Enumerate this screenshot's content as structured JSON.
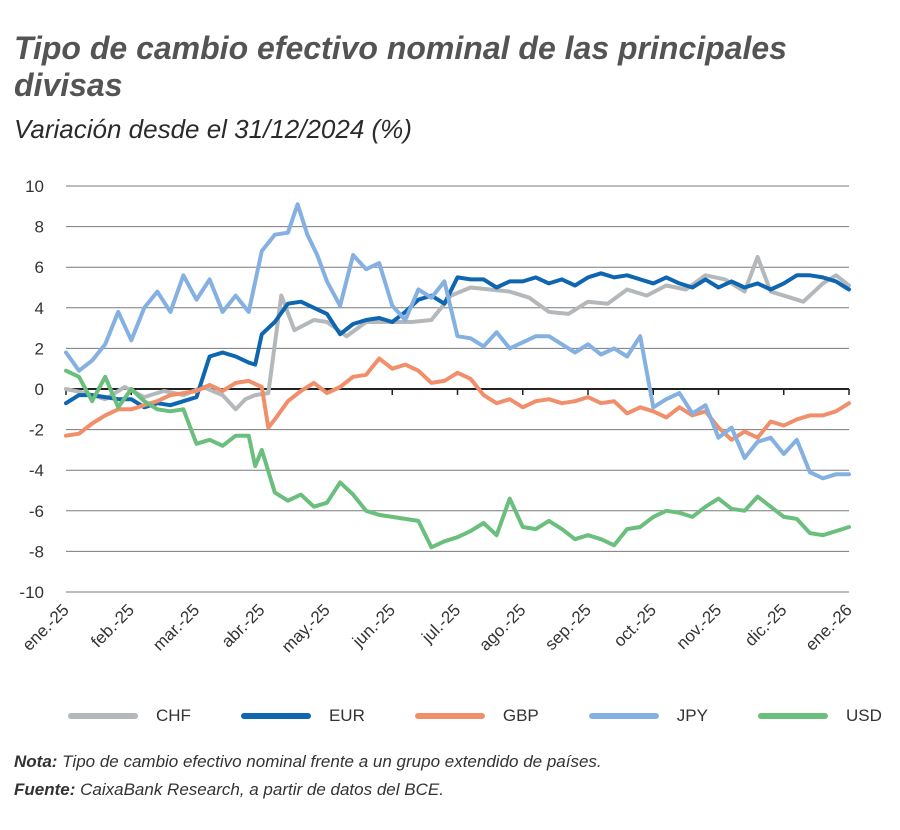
{
  "title": "Tipo de cambio efectivo nominal de las principales divisas",
  "subtitle": "Variación desde el 31/12/2024 (%)",
  "note": {
    "label": "Nota:",
    "text": " Tipo de cambio efectivo nominal frente a un grupo extendido de países."
  },
  "source": {
    "label": "Fuente:",
    "text": " CaixaBank Research, a partir de datos del BCE."
  },
  "chart_data": {
    "type": "line",
    "title": "Tipo de cambio efectivo nominal de las principales divisas",
    "ylabel": "Variación desde el 31/12/2024 (%)",
    "xlabel": "",
    "ylim": [
      -10,
      10
    ],
    "yticks": [
      10,
      8,
      6,
      4,
      2,
      0,
      -2,
      -4,
      -6,
      -8,
      -10
    ],
    "x_months": 12,
    "categories": [
      "ene.-25",
      "feb.-25",
      "mar.-25",
      "abr.-25",
      "may.-25",
      "jun.-25",
      "jul.-25",
      "ago.-25",
      "sep.-25",
      "oct.-25",
      "nov.-25",
      "dic.-25",
      "ene.-26"
    ],
    "grid": true,
    "legend_position": "bottom",
    "series": [
      {
        "name": "CHF",
        "color": "#b4b8ba",
        "x": [
          0,
          0.3,
          0.6,
          0.9,
          1.2,
          1.5,
          1.8,
          2.1,
          2.4,
          2.6,
          2.75,
          2.9,
          3.1,
          3.3,
          3.5,
          3.8,
          4.0,
          4.3,
          4.6,
          5.0,
          5.3,
          5.6,
          5.9,
          6.2,
          6.5,
          6.8,
          7.1,
          7.4,
          7.7,
          8.0,
          8.3,
          8.6,
          8.9,
          9.2,
          9.5,
          9.8,
          10.1,
          10.4,
          10.6,
          10.8,
          11.0,
          11.3,
          11.6,
          11.8,
          12.0
        ],
        "values": [
          0,
          -0.2,
          -0.5,
          0.1,
          -0.4,
          -0.1,
          -0.3,
          0.1,
          -0.3,
          -1.0,
          -0.5,
          -0.3,
          -0.2,
          4.6,
          2.9,
          3.4,
          3.3,
          2.6,
          3.3,
          3.3,
          3.3,
          3.4,
          4.6,
          5.0,
          4.9,
          4.8,
          4.5,
          3.8,
          3.7,
          4.3,
          4.2,
          4.9,
          4.6,
          5.1,
          4.9,
          5.6,
          5.4,
          4.8,
          6.5,
          4.8,
          4.6,
          4.3,
          5.2,
          5.6,
          5.1
        ]
      },
      {
        "name": "EUR",
        "color": "#0e66b1",
        "x": [
          0,
          0.2,
          0.4,
          0.6,
          0.8,
          1.0,
          1.2,
          1.4,
          1.6,
          1.8,
          2.0,
          2.2,
          2.4,
          2.6,
          2.8,
          2.9,
          3.0,
          3.2,
          3.4,
          3.6,
          3.8,
          4.0,
          4.2,
          4.4,
          4.6,
          4.8,
          5.0,
          5.2,
          5.4,
          5.6,
          5.8,
          6.0,
          6.2,
          6.4,
          6.6,
          6.8,
          7.0,
          7.2,
          7.4,
          7.6,
          7.8,
          8.0,
          8.2,
          8.4,
          8.6,
          8.8,
          9.0,
          9.2,
          9.4,
          9.6,
          9.8,
          10.0,
          10.2,
          10.4,
          10.6,
          10.8,
          11.0,
          11.2,
          11.4,
          11.6,
          11.8,
          12.0
        ],
        "values": [
          -0.7,
          -0.3,
          -0.3,
          -0.4,
          -0.5,
          -0.5,
          -0.9,
          -0.7,
          -0.8,
          -0.6,
          -0.4,
          1.6,
          1.8,
          1.6,
          1.3,
          1.2,
          2.7,
          3.3,
          4.2,
          4.3,
          4.0,
          3.7,
          2.7,
          3.2,
          3.4,
          3.5,
          3.3,
          3.8,
          4.4,
          4.6,
          4.2,
          5.5,
          5.4,
          5.4,
          5.0,
          5.3,
          5.3,
          5.5,
          5.2,
          5.4,
          5.1,
          5.5,
          5.7,
          5.5,
          5.6,
          5.4,
          5.2,
          5.5,
          5.2,
          5.0,
          5.4,
          5.0,
          5.3,
          5.0,
          5.2,
          4.9,
          5.2,
          5.6,
          5.6,
          5.5,
          5.3,
          4.9
        ]
      },
      {
        "name": "GBP",
        "color": "#f08f6a",
        "x": [
          0,
          0.2,
          0.4,
          0.6,
          0.8,
          1.0,
          1.2,
          1.4,
          1.6,
          1.8,
          2.0,
          2.2,
          2.4,
          2.6,
          2.8,
          3.0,
          3.1,
          3.2,
          3.4,
          3.6,
          3.8,
          4.0,
          4.2,
          4.4,
          4.6,
          4.8,
          5.0,
          5.2,
          5.4,
          5.6,
          5.8,
          6.0,
          6.2,
          6.4,
          6.6,
          6.8,
          7.0,
          7.2,
          7.4,
          7.6,
          7.8,
          8.0,
          8.2,
          8.4,
          8.6,
          8.8,
          9.0,
          9.2,
          9.4,
          9.6,
          9.8,
          10.0,
          10.2,
          10.4,
          10.6,
          10.8,
          11.0,
          11.2,
          11.4,
          11.6,
          11.8,
          12.0
        ],
        "values": [
          -2.3,
          -2.2,
          -1.7,
          -1.3,
          -1.0,
          -1.0,
          -0.8,
          -0.6,
          -0.3,
          -0.2,
          -0.1,
          0.2,
          -0.1,
          0.3,
          0.4,
          0.1,
          -1.9,
          -1.5,
          -0.6,
          -0.1,
          0.3,
          -0.2,
          0.1,
          0.6,
          0.7,
          1.5,
          1.0,
          1.2,
          0.9,
          0.3,
          0.4,
          0.8,
          0.5,
          -0.3,
          -0.7,
          -0.5,
          -0.9,
          -0.6,
          -0.5,
          -0.7,
          -0.6,
          -0.4,
          -0.7,
          -0.6,
          -1.2,
          -0.9,
          -1.1,
          -1.4,
          -0.9,
          -1.3,
          -1.1,
          -1.9,
          -2.5,
          -2.1,
          -2.4,
          -1.6,
          -1.8,
          -1.5,
          -1.3,
          -1.3,
          -1.1,
          -0.7
        ]
      },
      {
        "name": "JPY",
        "color": "#85b0e2",
        "x": [
          0,
          0.2,
          0.4,
          0.6,
          0.8,
          1.0,
          1.2,
          1.4,
          1.6,
          1.8,
          2.0,
          2.2,
          2.4,
          2.6,
          2.8,
          3.0,
          3.2,
          3.4,
          3.55,
          3.7,
          3.85,
          4.0,
          4.2,
          4.4,
          4.6,
          4.8,
          5.0,
          5.2,
          5.4,
          5.6,
          5.8,
          6.0,
          6.2,
          6.4,
          6.6,
          6.8,
          7.0,
          7.2,
          7.4,
          7.6,
          7.8,
          8.0,
          8.2,
          8.4,
          8.6,
          8.8,
          9.0,
          9.2,
          9.4,
          9.6,
          9.8,
          10.0,
          10.2,
          10.4,
          10.6,
          10.8,
          11.0,
          11.2,
          11.4,
          11.6,
          11.8,
          12.0
        ],
        "values": [
          1.8,
          0.9,
          1.4,
          2.2,
          3.8,
          2.4,
          4.0,
          4.8,
          3.8,
          5.6,
          4.4,
          5.4,
          3.8,
          4.6,
          3.8,
          6.8,
          7.6,
          7.7,
          9.1,
          7.6,
          6.6,
          5.3,
          4.1,
          6.6,
          5.9,
          6.2,
          4.1,
          3.4,
          4.9,
          4.5,
          5.3,
          2.6,
          2.5,
          2.1,
          2.8,
          2.0,
          2.3,
          2.6,
          2.6,
          2.2,
          1.8,
          2.2,
          1.7,
          2.0,
          1.6,
          2.6,
          -0.9,
          -0.5,
          -0.2,
          -1.2,
          -0.8,
          -2.4,
          -1.9,
          -3.4,
          -2.6,
          -2.4,
          -3.2,
          -2.5,
          -4.1,
          -4.4,
          -4.2,
          -4.2
        ]
      },
      {
        "name": "USD",
        "color": "#6bbf7d",
        "x": [
          0,
          0.2,
          0.4,
          0.6,
          0.8,
          1.0,
          1.2,
          1.4,
          1.6,
          1.8,
          2.0,
          2.2,
          2.4,
          2.6,
          2.8,
          2.9,
          3.0,
          3.2,
          3.4,
          3.6,
          3.8,
          4.0,
          4.2,
          4.4,
          4.6,
          4.8,
          5.0,
          5.2,
          5.4,
          5.6,
          5.8,
          6.0,
          6.2,
          6.4,
          6.6,
          6.8,
          7.0,
          7.2,
          7.4,
          7.6,
          7.8,
          8.0,
          8.2,
          8.4,
          8.6,
          8.8,
          9.0,
          9.2,
          9.4,
          9.6,
          9.8,
          10.0,
          10.2,
          10.4,
          10.6,
          10.8,
          11.0,
          11.2,
          11.4,
          11.6,
          11.8,
          12.0
        ],
        "values": [
          0.9,
          0.6,
          -0.6,
          0.6,
          -0.9,
          0.0,
          -0.6,
          -1.0,
          -1.1,
          -1.0,
          -2.7,
          -2.5,
          -2.8,
          -2.3,
          -2.3,
          -3.8,
          -3.0,
          -5.1,
          -5.5,
          -5.2,
          -5.8,
          -5.6,
          -4.6,
          -5.2,
          -6.0,
          -6.2,
          -6.3,
          -6.4,
          -6.5,
          -7.8,
          -7.5,
          -7.3,
          -7.0,
          -6.6,
          -7.2,
          -5.4,
          -6.8,
          -6.9,
          -6.5,
          -6.9,
          -7.4,
          -7.2,
          -7.4,
          -7.7,
          -6.9,
          -6.8,
          -6.3,
          -6.0,
          -6.1,
          -6.3,
          -5.8,
          -5.4,
          -5.9,
          -6.0,
          -5.3,
          -5.8,
          -6.3,
          -6.4,
          -7.1,
          -7.2,
          -7.0,
          -6.8
        ]
      }
    ]
  }
}
